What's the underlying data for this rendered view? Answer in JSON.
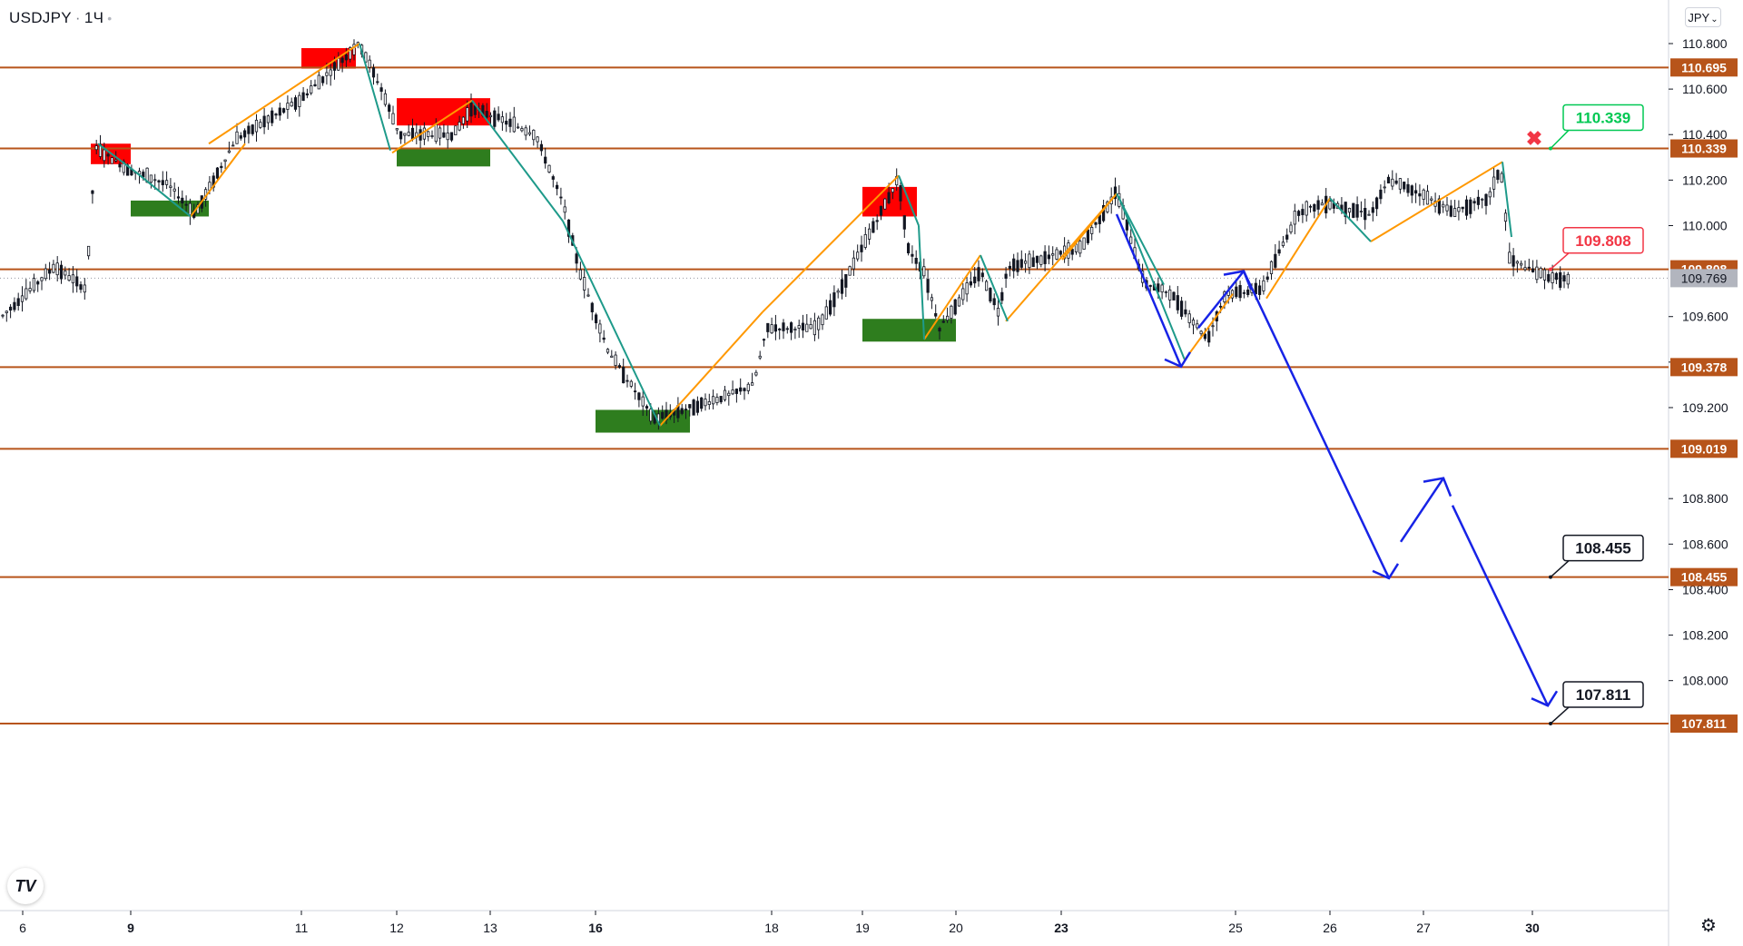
{
  "header": {
    "symbol": "USDJPY",
    "separator": "·",
    "interval": "1Ч",
    "status_dot": "•"
  },
  "currency_button": {
    "label": "JPY",
    "chevron": "⌄"
  },
  "logo": {
    "text": "TV"
  },
  "settings": {
    "icon": "gear-icon",
    "glyph": "⚙"
  },
  "chart_data": {
    "type": "candlestick",
    "title": "USDJPY",
    "timeframe": "1Ч",
    "ylim": [
      107.72,
      110.86
    ],
    "y_ticks": [
      {
        "v": 110.8,
        "label": "110.800"
      },
      {
        "v": 110.6,
        "label": "110.600"
      },
      {
        "v": 110.4,
        "label": "110.400"
      },
      {
        "v": 110.2,
        "label": "110.200"
      },
      {
        "v": 110.0,
        "label": "110.000"
      },
      {
        "v": 109.6,
        "label": "109.600"
      },
      {
        "v": 109.4,
        "label": "109.400"
      },
      {
        "v": 109.2,
        "label": "109.200"
      },
      {
        "v": 108.8,
        "label": "108.800"
      },
      {
        "v": 108.6,
        "label": "108.600"
      },
      {
        "v": 108.4,
        "label": "108.400"
      },
      {
        "v": 108.2,
        "label": "108.200"
      },
      {
        "v": 108.0,
        "label": "108.000"
      }
    ],
    "x_ticks": [
      {
        "label": "6",
        "bold": false
      },
      {
        "label": "9",
        "bold": true
      },
      {
        "label": "11",
        "bold": false
      },
      {
        "label": "12",
        "bold": false
      },
      {
        "label": "13",
        "bold": false
      },
      {
        "label": "16",
        "bold": true
      },
      {
        "label": "18",
        "bold": false
      },
      {
        "label": "19",
        "bold": false
      },
      {
        "label": "20",
        "bold": false
      },
      {
        "label": "23",
        "bold": true
      },
      {
        "label": "25",
        "bold": false
      },
      {
        "label": "26",
        "bold": false
      },
      {
        "label": "27",
        "bold": false
      },
      {
        "label": "30",
        "bold": true
      }
    ],
    "horizontal_levels": [
      {
        "value": 110.695,
        "label": "110.695"
      },
      {
        "value": 110.339,
        "label": "110.339"
      },
      {
        "value": 109.808,
        "label": "109.808"
      },
      {
        "value": 109.378,
        "label": "109.378"
      },
      {
        "value": 109.019,
        "label": "109.019"
      },
      {
        "value": 108.455,
        "label": "108.455"
      },
      {
        "value": 107.811,
        "label": "107.811"
      }
    ],
    "last_price": {
      "value": 109.769,
      "label": "109.769"
    },
    "callouts": [
      {
        "value": 110.339,
        "label": "110.339",
        "color": "#00c853",
        "style": "take-profit"
      },
      {
        "value": 109.808,
        "label": "109.808",
        "color": "#f23645",
        "style": "entry"
      },
      {
        "value": 108.455,
        "label": "108.455",
        "color": "#131722",
        "style": "target"
      },
      {
        "value": 107.811,
        "label": "107.811",
        "color": "#131722",
        "style": "target"
      }
    ],
    "stop_marker": {
      "value": 110.4,
      "symbol": "✖",
      "color": "#f23645"
    },
    "supply_zones": [
      {
        "from_date": "8",
        "to_date": "9",
        "top": 110.36,
        "bottom": 110.27
      },
      {
        "from_date": "11",
        "to_date": "11",
        "top": 110.78,
        "bottom": 110.69
      },
      {
        "from_date": "12",
        "to_date": "13",
        "top": 110.56,
        "bottom": 110.44
      },
      {
        "from_date": "19",
        "to_date": "19",
        "top": 110.17,
        "bottom": 110.04
      }
    ],
    "demand_zones": [
      {
        "from_date": "9",
        "to_date": "10",
        "top": 110.11,
        "bottom": 110.04
      },
      {
        "from_date": "12",
        "to_date": "13",
        "top": 110.34,
        "bottom": 110.26
      },
      {
        "from_date": "16",
        "to_date": "17",
        "top": 109.19,
        "bottom": 109.09
      },
      {
        "from_date": "19",
        "to_date": "20",
        "top": 109.59,
        "bottom": 109.49
      }
    ],
    "colors": {
      "level_line": "#b7541a",
      "level_label_bg": "#b7541a",
      "uptrend": "#ff9800",
      "downtrend": "#1e9a8a",
      "forecast": "#1723e6",
      "candle": "#131722",
      "supply": "#ff0000",
      "demand": "#2e7d1e",
      "last_price_bg": "#b2b5be"
    }
  }
}
